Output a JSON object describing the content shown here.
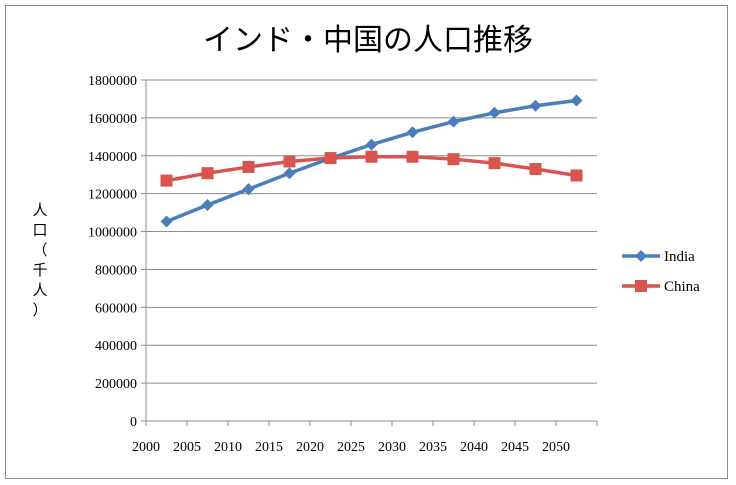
{
  "chart_data": {
    "type": "line",
    "title": "インド・中国の人口推移",
    "ylabel": "人口（千人）",
    "xlabel": "",
    "categories": [
      "2000",
      "2005",
      "2010",
      "2015",
      "2020",
      "2025",
      "2030",
      "2035",
      "2040",
      "2045",
      "2050"
    ],
    "ylim": [
      0,
      1800000
    ],
    "yticks": [
      0,
      200000,
      400000,
      600000,
      800000,
      1000000,
      1200000,
      1400000,
      1600000,
      1800000
    ],
    "grid": true,
    "legend_position": "right",
    "series": [
      {
        "name": "India",
        "color": "#4a7ebb",
        "marker": "diamond",
        "values": [
          1053000,
          1140000,
          1224000,
          1308000,
          1387000,
          1459000,
          1524000,
          1580000,
          1627000,
          1664000,
          1692000
        ]
      },
      {
        "name": "China",
        "color": "#d9534f",
        "marker": "square",
        "values": [
          1269000,
          1308000,
          1341000,
          1370000,
          1388000,
          1395000,
          1395000,
          1382000,
          1361000,
          1330000,
          1296000
        ]
      }
    ]
  }
}
